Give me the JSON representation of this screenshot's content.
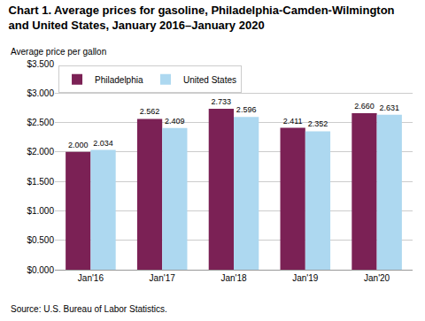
{
  "chart_data": {
    "type": "bar",
    "title": [
      "Chart 1. Average prices for gasoline, Philadelphia-Camden-Wilmington",
      "and United States, January 2016–January 2020"
    ],
    "y_label": "Average price per gallon",
    "annotations": [
      "Source: U.S. Bureau of Labor Statistics."
    ],
    "categories": [
      "Jan'16",
      "Jan'17",
      "Jan'18",
      "Jan'19",
      "Jan'20"
    ],
    "series": [
      {
        "name": "Philadelphia",
        "color": "#7B2155",
        "values": [
          2.0,
          2.562,
          2.733,
          2.411,
          2.66
        ],
        "value_labels": [
          "2.000",
          "2.562",
          "2.733",
          "2.411",
          "2.660"
        ]
      },
      {
        "name": "United States",
        "color": "#ADD8F0",
        "values": [
          2.034,
          2.409,
          2.596,
          2.352,
          2.631
        ],
        "value_labels": [
          "2.034",
          "2.409",
          "2.596",
          "2.352",
          "2.631"
        ]
      }
    ],
    "ylim": [
      0,
      3.5
    ],
    "yticks": [
      {
        "value": 0.0,
        "label": "$0.000"
      },
      {
        "value": 0.5,
        "label": "$0.500"
      },
      {
        "value": 1.0,
        "label": "$1.000"
      },
      {
        "value": 1.5,
        "label": "$1.500"
      },
      {
        "value": 2.0,
        "label": "$2.000"
      },
      {
        "value": 2.5,
        "label": "$2.500"
      },
      {
        "value": 3.0,
        "label": "$3.000"
      },
      {
        "value": 3.5,
        "label": "$3.500"
      }
    ],
    "grid": true,
    "legend": "upper left",
    "data_labels": true
  }
}
